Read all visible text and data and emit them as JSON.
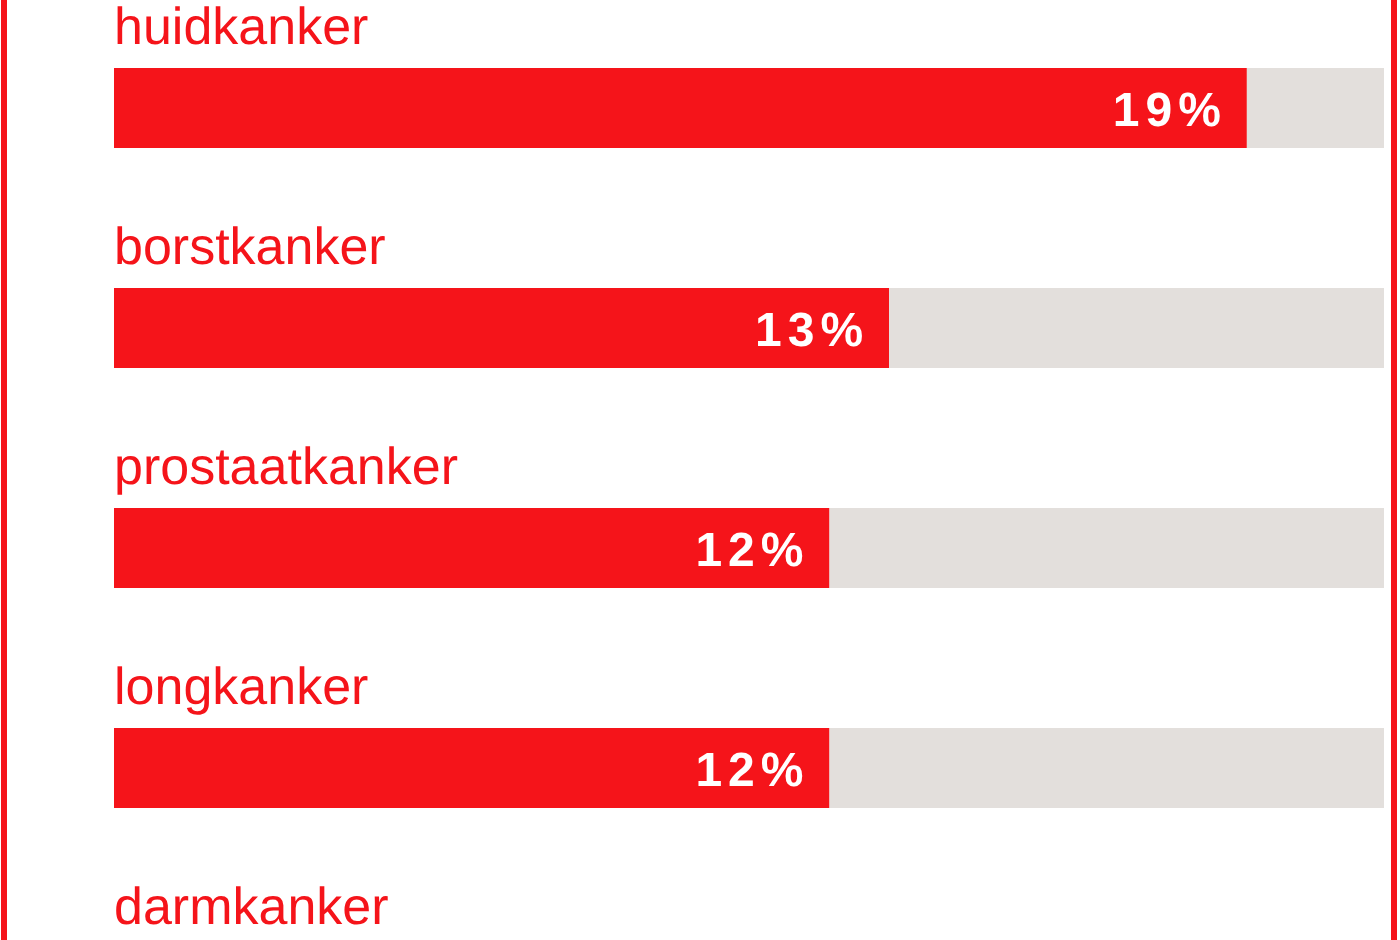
{
  "chart_data": {
    "type": "bar",
    "orientation": "horizontal",
    "stacked": true,
    "categories": [
      "huidkanker",
      "borstkanker",
      "prostaatkanker",
      "longkanker",
      "darmkanker"
    ],
    "series": [
      {
        "color": "#f5141a",
        "values": [
          19,
          13,
          12,
          12,
          null
        ],
        "value_labels": [
          "19%",
          "13%",
          "12%",
          "12%",
          null
        ]
      },
      {
        "color": "#e3dfdc",
        "values": [
          2.3,
          8.3,
          9.3,
          9.3,
          null
        ]
      }
    ],
    "xlim": [
      0,
      21.3
    ]
  }
}
